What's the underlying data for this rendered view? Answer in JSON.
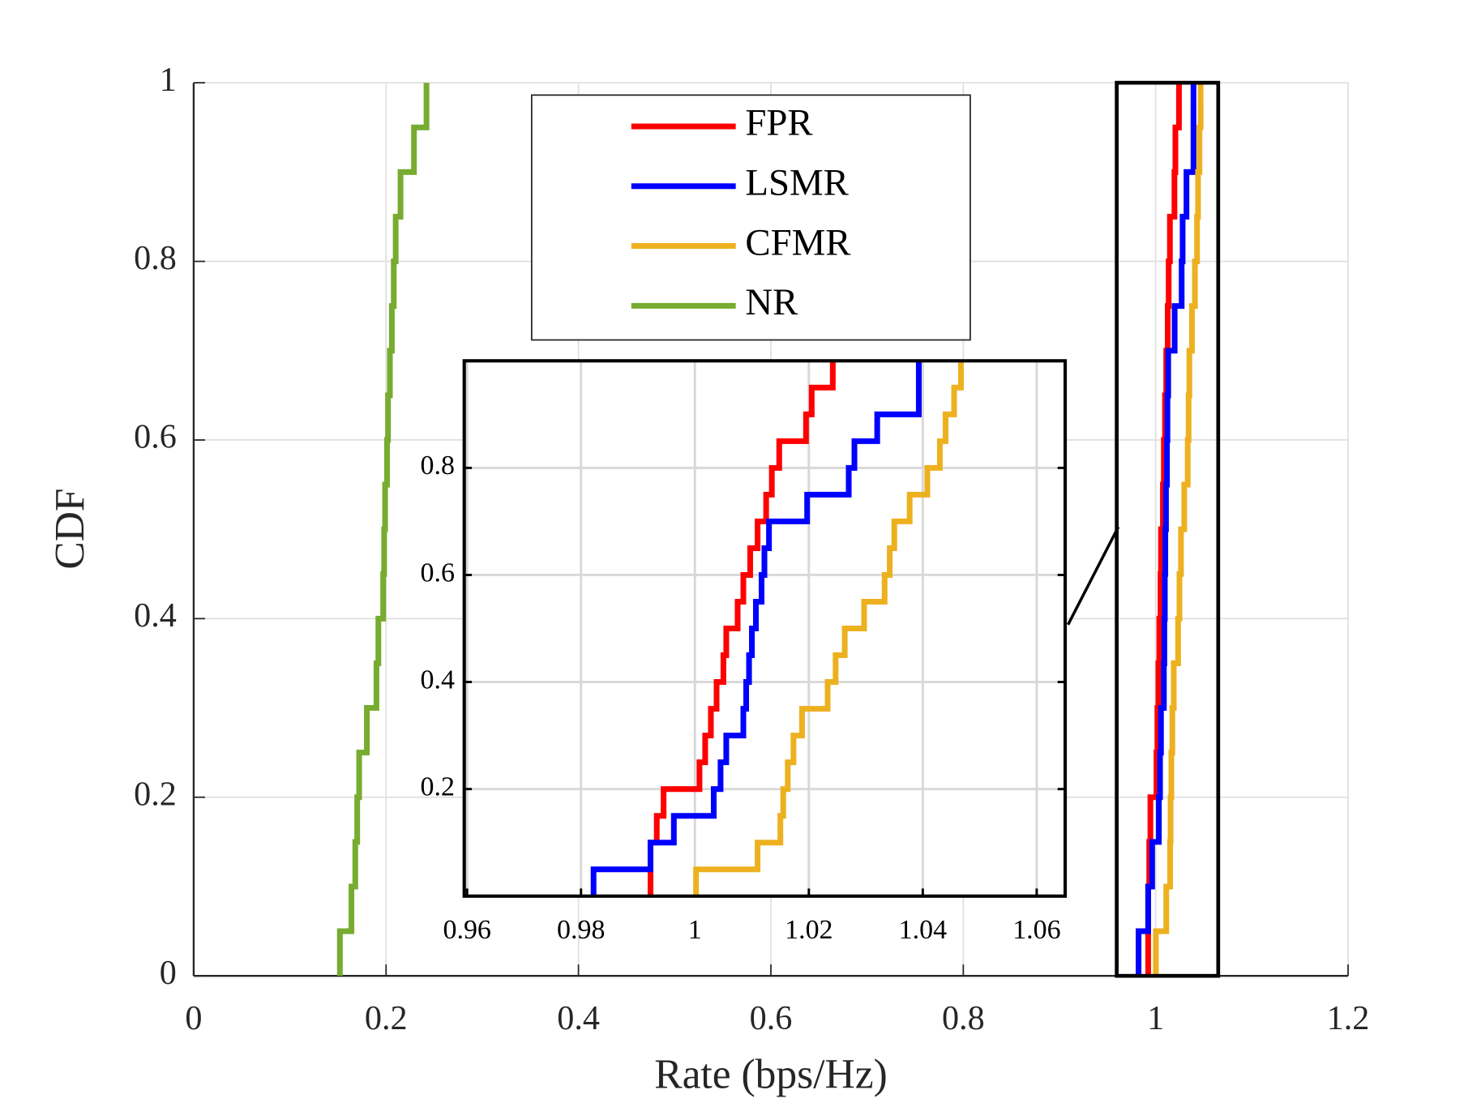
{
  "chart_data": {
    "type": "line",
    "xlabel": "Rate (bps/Hz)",
    "ylabel": "CDF",
    "xlim": [
      0,
      1.2
    ],
    "ylim": [
      0,
      1
    ],
    "xticks": [
      0,
      0.2,
      0.4,
      0.6,
      0.8,
      1,
      1.2
    ],
    "yticks": [
      0,
      0.2,
      0.4,
      0.6,
      0.8,
      1
    ],
    "grid": true,
    "legend": "north",
    "series": [
      {
        "name": "FPR",
        "color": "#ff0000",
        "x": [
          0.9922,
          0.9922,
          0.9922,
          0.9933,
          0.9945,
          1.0008,
          1.0018,
          1.0028,
          1.0038,
          1.005,
          1.0055,
          1.0075,
          1.0085,
          1.0097,
          1.011,
          1.0125,
          1.0135,
          1.0148,
          1.0195,
          1.0205,
          1.0242
        ],
        "values": [
          0,
          0.05,
          0.1,
          0.15,
          0.2,
          0.25,
          0.3,
          0.35,
          0.4,
          0.45,
          0.5,
          0.55,
          0.6,
          0.65,
          0.7,
          0.75,
          0.8,
          0.85,
          0.9,
          0.95,
          1
        ]
      },
      {
        "name": "LSMR",
        "color": "#0000ff",
        "x": [
          0.9822,
          0.9822,
          0.9922,
          0.9963,
          1.0033,
          1.0045,
          1.0055,
          1.0085,
          1.009,
          1.0095,
          1.01,
          1.0107,
          1.0117,
          1.0122,
          1.013,
          1.0197,
          1.027,
          1.028,
          1.032,
          1.0393,
          1.0393
        ],
        "values": [
          0,
          0.05,
          0.1,
          0.15,
          0.2,
          0.25,
          0.3,
          0.35,
          0.4,
          0.45,
          0.5,
          0.55,
          0.6,
          0.65,
          0.7,
          0.75,
          0.8,
          0.85,
          0.9,
          0.95,
          1
        ]
      },
      {
        "name": "CFMR",
        "color": "#edb120",
        "x": [
          1.0002,
          1.0002,
          1.011,
          1.015,
          1.0155,
          1.0163,
          1.0173,
          1.0188,
          1.0233,
          1.0247,
          1.0263,
          1.0297,
          1.0333,
          1.0342,
          1.035,
          1.0377,
          1.0408,
          1.043,
          1.044,
          1.0455,
          1.0467
        ],
        "values": [
          0,
          0.05,
          0.1,
          0.15,
          0.2,
          0.25,
          0.3,
          0.35,
          0.4,
          0.45,
          0.5,
          0.55,
          0.6,
          0.65,
          0.7,
          0.75,
          0.8,
          0.85,
          0.9,
          0.95,
          1
        ]
      },
      {
        "name": "NR",
        "color": "#77ac30",
        "x": [
          0.152,
          0.152,
          0.164,
          0.168,
          0.17,
          0.172,
          0.18,
          0.19,
          0.192,
          0.197,
          0.198,
          0.199,
          0.201,
          0.202,
          0.204,
          0.206,
          0.208,
          0.21,
          0.215,
          0.229,
          0.242
        ],
        "values": [
          0,
          0.05,
          0.1,
          0.15,
          0.2,
          0.25,
          0.3,
          0.35,
          0.4,
          0.45,
          0.5,
          0.55,
          0.6,
          0.65,
          0.7,
          0.75,
          0.8,
          0.85,
          0.9,
          0.95,
          1
        ]
      }
    ],
    "inset": {
      "xlim": [
        0.9595,
        1.065
      ],
      "ylim": [
        0,
        1
      ],
      "xticks": [
        0.96,
        0.98,
        1,
        1.02,
        1.04,
        1.06
      ],
      "yticks": [
        0.2,
        0.4,
        0.6,
        0.8
      ]
    }
  }
}
